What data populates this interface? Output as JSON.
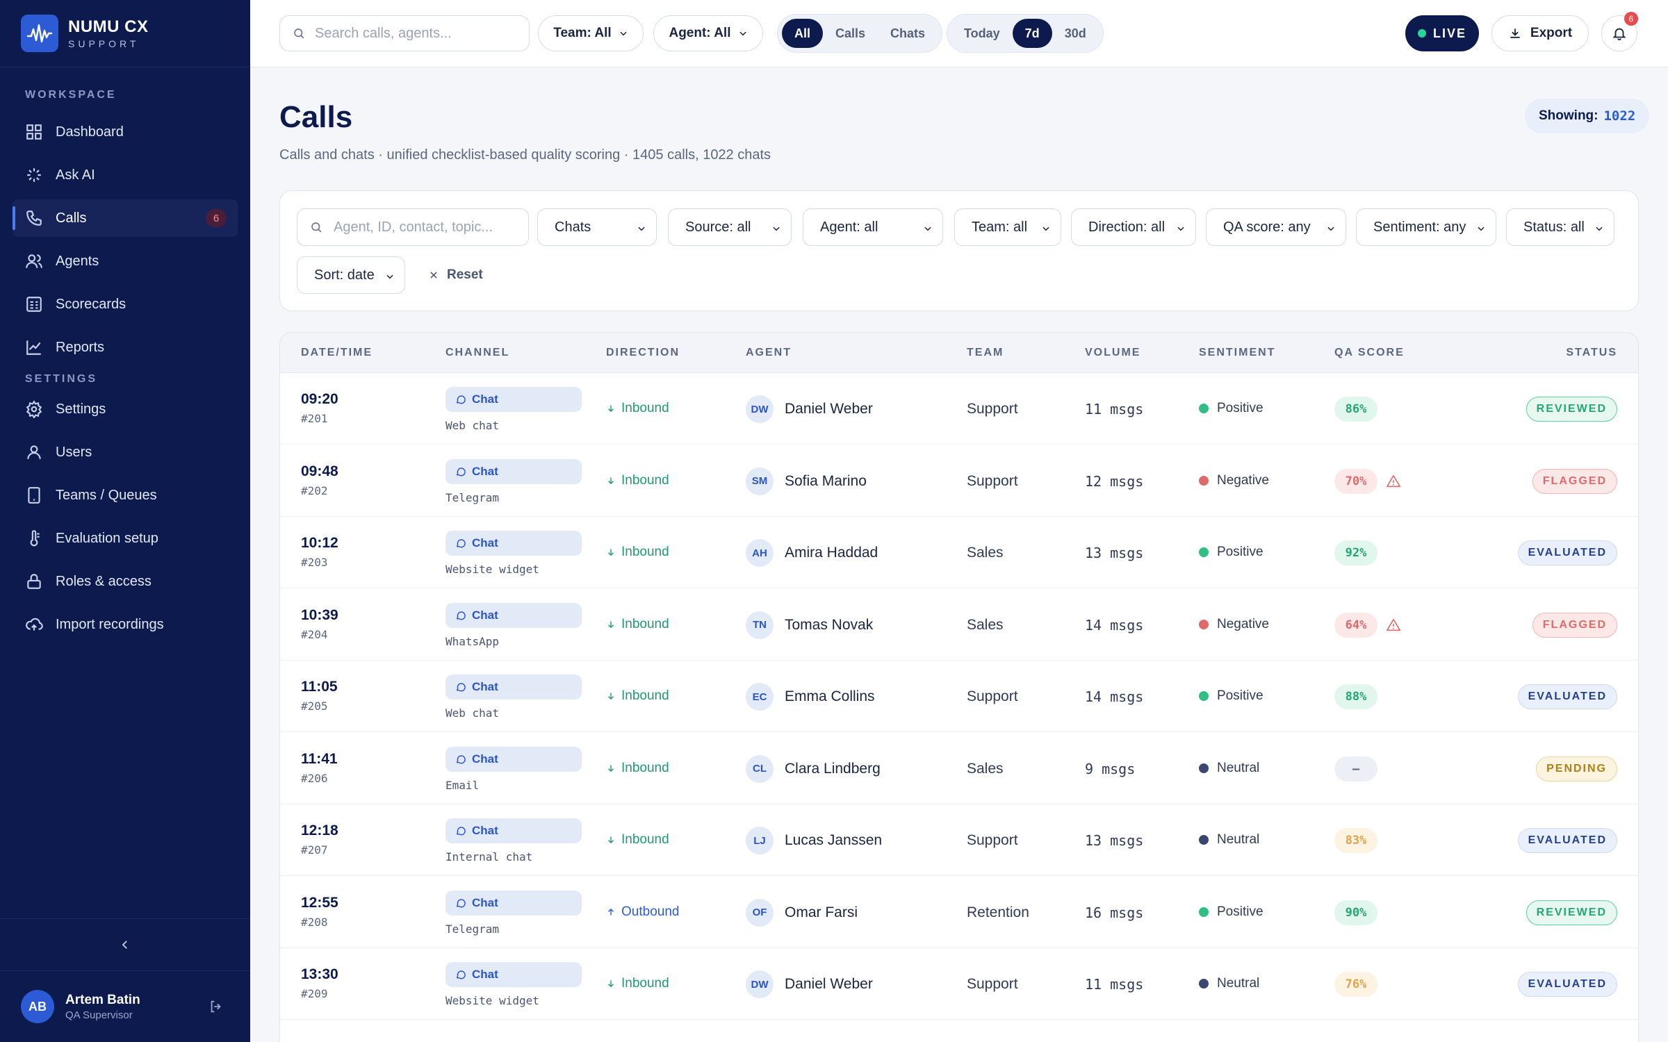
{
  "brand": {
    "name": "NUMU CX",
    "tagline": "SUPPORT"
  },
  "sidebar": {
    "workspace_label": "WORKSPACE",
    "settings_label": "SETTINGS",
    "items": [
      {
        "label": "Dashboard",
        "icon": "grid-icon"
      },
      {
        "label": "Ask AI",
        "icon": "sparkle-icon"
      },
      {
        "label": "Calls",
        "icon": "phone-icon",
        "count": "6",
        "active": true
      },
      {
        "label": "Agents",
        "icon": "users-icon"
      },
      {
        "label": "Scorecards",
        "icon": "scorecard-icon"
      },
      {
        "label": "Reports",
        "icon": "chart-icon"
      },
      {
        "label": "Settings",
        "icon": "gear-icon"
      },
      {
        "label": "Users",
        "icon": "user-icon"
      },
      {
        "label": "Teams / Queues",
        "icon": "tablet-icon"
      },
      {
        "label": "Evaluation setup",
        "icon": "thermometer-icon"
      },
      {
        "label": "Roles & access",
        "icon": "lock-icon"
      },
      {
        "label": "Import recordings",
        "icon": "cloud-upload-icon"
      }
    ],
    "user": {
      "initials": "AB",
      "name": "Artem Batin",
      "role": "QA Supervisor"
    }
  },
  "topbar": {
    "search_placeholder": "Search calls, agents...",
    "team_filter": "Team: All",
    "agent_filter": "Agent: All",
    "channel_tabs": [
      "All",
      "Calls",
      "Chats"
    ],
    "channel_selected": "All",
    "range_tabs": [
      "Today",
      "7d",
      "30d"
    ],
    "range_selected": "7d",
    "live_label": "LIVE",
    "export_label": "Export",
    "notif_count": "6"
  },
  "page": {
    "title": "Calls",
    "subtitle": "Calls and chats · unified checklist-based quality scoring · 1405 calls, 1022 chats",
    "showing_label": "Showing:",
    "showing_value": "1022"
  },
  "filters": {
    "search_placeholder": "Agent, ID, contact, topic...",
    "selects": [
      "Chats",
      "Source: all",
      "Agent: all",
      "Team: all",
      "Direction: all",
      "QA score: any",
      "Sentiment: any",
      "Status: all",
      "Sort: date"
    ],
    "reset_label": "Reset"
  },
  "table": {
    "headers": [
      "DATE/TIME",
      "CHANNEL",
      "DIRECTION",
      "AGENT",
      "TEAM",
      "VOLUME",
      "SENTIMENT",
      "QA SCORE",
      "STATUS"
    ],
    "rows": [
      {
        "time": "09:20",
        "id": "#201",
        "channel": "Chat",
        "source": "Web chat",
        "direction": "Inbound",
        "initials": "DW",
        "agent": "Daniel Weber",
        "team": "Support",
        "volume": "11 msgs",
        "sentiment": "Positive",
        "qa": "86%",
        "qa_level": "good",
        "warn": false,
        "status": "REVIEWED"
      },
      {
        "time": "09:48",
        "id": "#202",
        "channel": "Chat",
        "source": "Telegram",
        "direction": "Inbound",
        "initials": "SM",
        "agent": "Sofia Marino",
        "team": "Support",
        "volume": "12 msgs",
        "sentiment": "Negative",
        "qa": "70%",
        "qa_level": "bad",
        "warn": true,
        "status": "FLAGGED"
      },
      {
        "time": "10:12",
        "id": "#203",
        "channel": "Chat",
        "source": "Website widget",
        "direction": "Inbound",
        "initials": "AH",
        "agent": "Amira Haddad",
        "team": "Sales",
        "volume": "13 msgs",
        "sentiment": "Positive",
        "qa": "92%",
        "qa_level": "good",
        "warn": false,
        "status": "EVALUATED"
      },
      {
        "time": "10:39",
        "id": "#204",
        "channel": "Chat",
        "source": "WhatsApp",
        "direction": "Inbound",
        "initials": "TN",
        "agent": "Tomas Novak",
        "team": "Sales",
        "volume": "14 msgs",
        "sentiment": "Negative",
        "qa": "64%",
        "qa_level": "bad",
        "warn": true,
        "status": "FLAGGED"
      },
      {
        "time": "11:05",
        "id": "#205",
        "channel": "Chat",
        "source": "Web chat",
        "direction": "Inbound",
        "initials": "EC",
        "agent": "Emma Collins",
        "team": "Support",
        "volume": "14 msgs",
        "sentiment": "Positive",
        "qa": "88%",
        "qa_level": "good",
        "warn": false,
        "status": "EVALUATED"
      },
      {
        "time": "11:41",
        "id": "#206",
        "channel": "Chat",
        "source": "Email",
        "direction": "Inbound",
        "initials": "CL",
        "agent": "Clara Lindberg",
        "team": "Sales",
        "volume": "9 msgs",
        "sentiment": "Neutral",
        "qa": "–",
        "qa_level": "none",
        "warn": false,
        "status": "PENDING"
      },
      {
        "time": "12:18",
        "id": "#207",
        "channel": "Chat",
        "source": "Internal chat",
        "direction": "Inbound",
        "initials": "LJ",
        "agent": "Lucas Janssen",
        "team": "Support",
        "volume": "13 msgs",
        "sentiment": "Neutral",
        "qa": "83%",
        "qa_level": "mid",
        "warn": false,
        "status": "EVALUATED"
      },
      {
        "time": "12:55",
        "id": "#208",
        "channel": "Chat",
        "source": "Telegram",
        "direction": "Outbound",
        "initials": "OF",
        "agent": "Omar Farsi",
        "team": "Retention",
        "volume": "16 msgs",
        "sentiment": "Positive",
        "qa": "90%",
        "qa_level": "good",
        "warn": false,
        "status": "REVIEWED"
      },
      {
        "time": "13:30",
        "id": "#209",
        "channel": "Chat",
        "source": "Website widget",
        "direction": "Inbound",
        "initials": "DW",
        "agent": "Daniel Weber",
        "team": "Support",
        "volume": "11 msgs",
        "sentiment": "Neutral",
        "qa": "76%",
        "qa_level": "mid",
        "warn": false,
        "status": "EVALUATED"
      }
    ]
  },
  "colors": {
    "sidebar_bg": "#0c1a4e",
    "accent": "#2d5bd6",
    "positive": "#2fbf85",
    "negative": "#e06a6a",
    "neutral": "#3b4672"
  }
}
